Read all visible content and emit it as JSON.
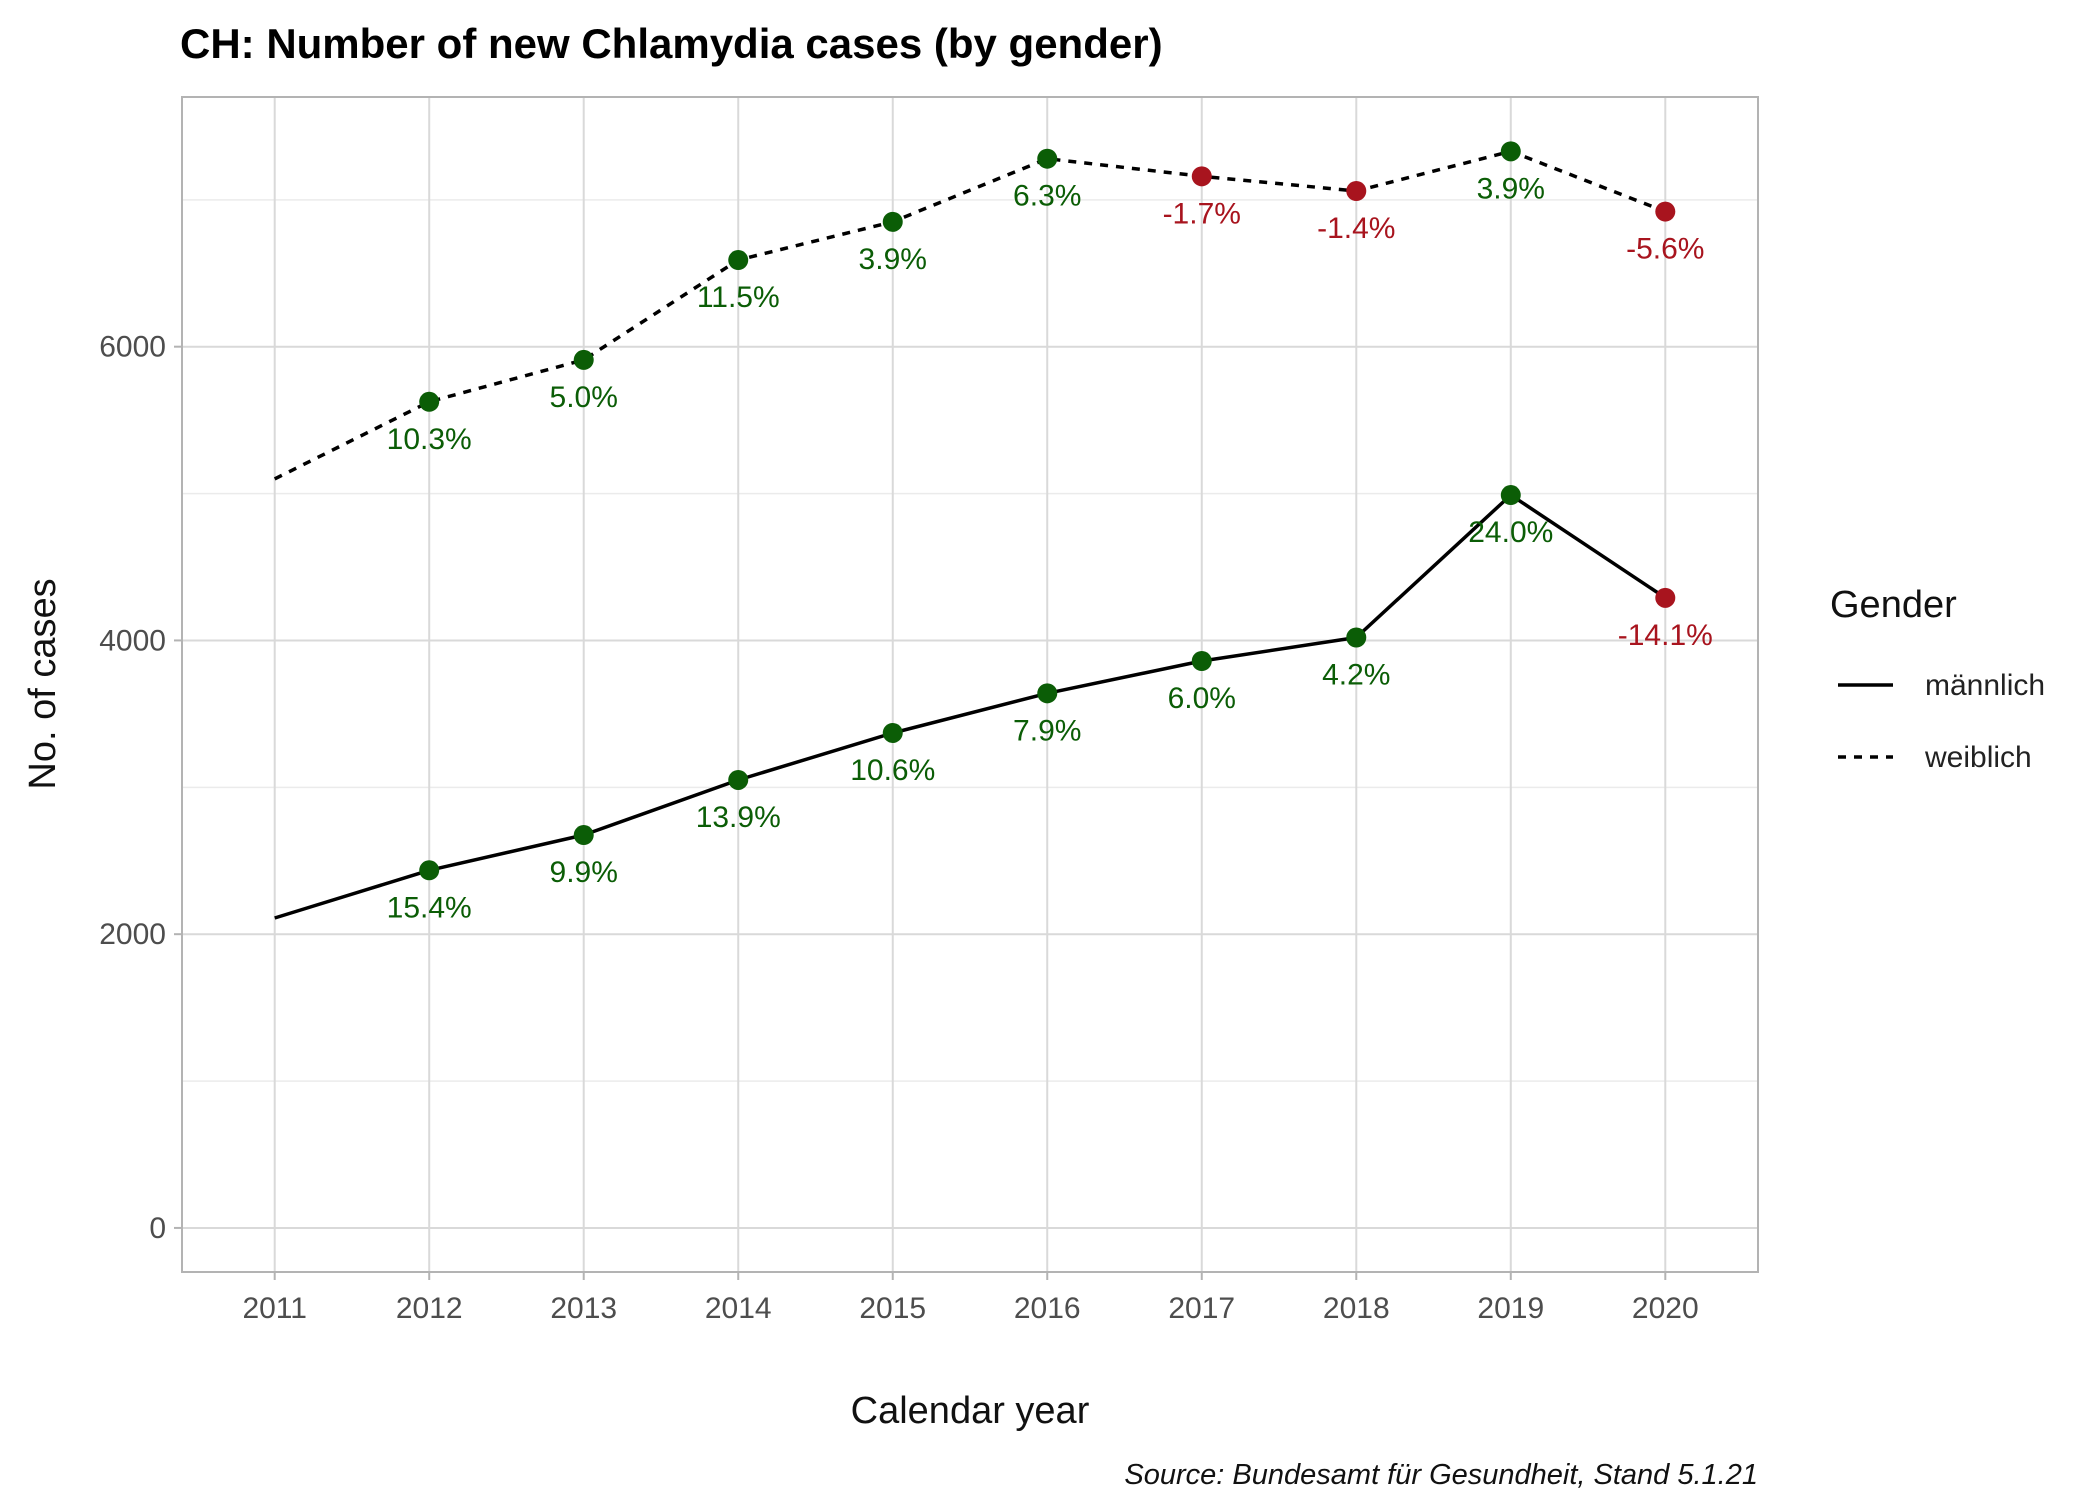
{
  "chart_data": {
    "type": "line",
    "title": "CH: Number of new Chlamydia cases (by gender)",
    "xlabel": "Calendar year",
    "ylabel": "No. of cases",
    "caption": "Source: Bundesamt für Gesundheit, Stand 5.1.21",
    "x": [
      2011,
      2012,
      2013,
      2014,
      2015,
      2016,
      2017,
      2018,
      2019,
      2020
    ],
    "x_ticks": [
      "2011",
      "2012",
      "2013",
      "2014",
      "2015",
      "2016",
      "2017",
      "2018",
      "2019",
      "2020"
    ],
    "ylim": [
      -300,
      7700
    ],
    "y_ticks": [
      0,
      2000,
      4000,
      6000
    ],
    "y_tick_labels": [
      "0",
      "2000",
      "4000",
      "6000"
    ],
    "grid": true,
    "legend": {
      "title": "Gender",
      "position": "right"
    },
    "colors": {
      "increase": "#0b5d06",
      "decrease": "#a8141e",
      "line": "#000000"
    },
    "series": [
      {
        "name": "männlich",
        "line_style": "solid",
        "values": [
          2110,
          2435,
          2675,
          3050,
          3370,
          3640,
          3860,
          4020,
          4990,
          4290
        ],
        "labels": [
          "",
          "15.4%",
          "9.9%",
          "13.9%",
          "10.6%",
          "7.9%",
          "6.0%",
          "4.2%",
          "24.0%",
          "-14.1%"
        ]
      },
      {
        "name": "weiblich",
        "line_style": "dashed",
        "values": [
          5100,
          5625,
          5910,
          6590,
          6850,
          7280,
          7160,
          7060,
          7330,
          6920
        ],
        "labels": [
          "",
          "10.3%",
          "5.0%",
          "11.5%",
          "3.9%",
          "6.3%",
          "-1.7%",
          "-1.4%",
          "3.9%",
          "-5.6%"
        ]
      }
    ]
  }
}
